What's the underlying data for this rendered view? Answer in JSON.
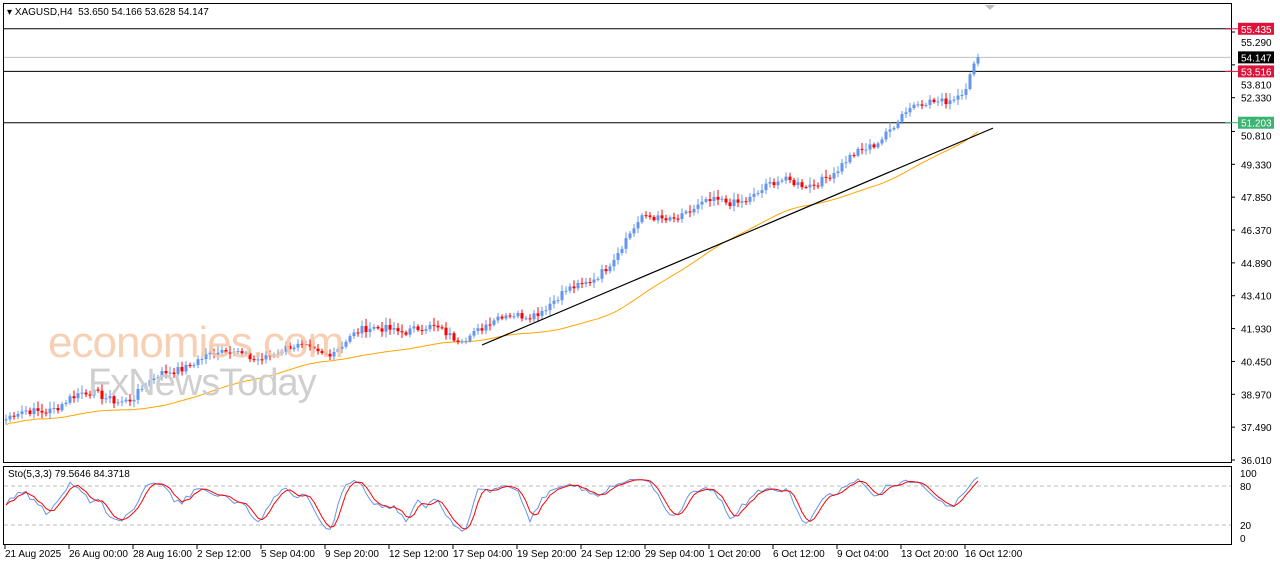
{
  "header": {
    "symbol": "XAGUSD,H4",
    "ohlc": "53.650 54.166 53.628 54.147"
  },
  "watermark": {
    "line1": "economies.com",
    "line2": "FxNewsToday"
  },
  "indicator": {
    "label": "Sto(5,3,3) 79.5646 84.3718",
    "levels": [
      "100",
      "80",
      "20",
      "0"
    ]
  },
  "colors": {
    "bull": "#6495ed",
    "bear": "#ff0000",
    "ma": "#ffa500",
    "trend": "#000000",
    "level_red": "#dc143c",
    "level_green": "#3cb371",
    "stoch_main": "#6495ed",
    "stoch_signal": "#ff0000"
  },
  "chart_data": {
    "type": "candlestick",
    "timeframe": "H4",
    "y_ticks": [
      "55.290",
      "53.810",
      "52.330",
      "50.810",
      "49.330",
      "47.850",
      "46.370",
      "44.890",
      "43.410",
      "41.930",
      "40.450",
      "38.970",
      "37.490",
      "36.010"
    ],
    "ylim": [
      36.01,
      55.29
    ],
    "x_ticks": [
      "21 Aug 2025",
      "26 Aug 00:00",
      "28 Aug 16:00",
      "2 Sep 12:00",
      "5 Sep 04:00",
      "9 Sep 20:00",
      "12 Sep 12:00",
      "17 Sep 04:00",
      "19 Sep 20:00",
      "24 Sep 12:00",
      "29 Sep 04:00",
      "1 Oct 20:00",
      "6 Oct 12:00",
      "9 Oct 04:00",
      "13 Oct 20:00",
      "16 Oct 12:00"
    ],
    "approx_close_at_ticks": [
      37.7,
      38.8,
      38.9,
      40.7,
      40.8,
      41.0,
      42.1,
      41.6,
      42.5,
      43.7,
      46.8,
      47.4,
      48.3,
      48.9,
      51.5,
      52.8
    ],
    "last_close": 54.147,
    "levels": [
      {
        "label": "55.435",
        "value": 55.435,
        "color": "#dc143c"
      },
      {
        "label": "53.516",
        "value": 53.516,
        "color": "#dc143c"
      },
      {
        "label": "51.203",
        "value": 51.203,
        "color": "#3cb371"
      }
    ],
    "current_price": {
      "label": "54.147",
      "value": 54.147
    },
    "trendline": {
      "from": 41.19,
      "to": 50.96,
      "from_tick": "17 Sep 04:00"
    },
    "grid": false
  }
}
